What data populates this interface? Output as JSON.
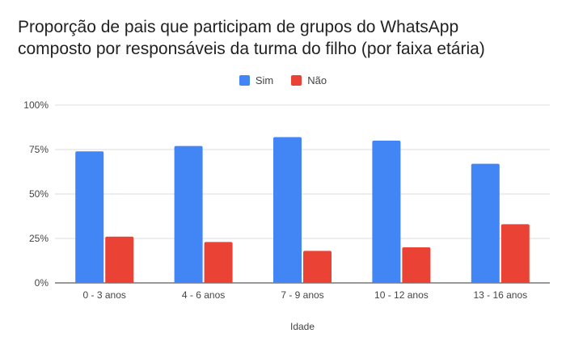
{
  "chart_data": {
    "type": "bar",
    "title_lines": [
      "Proporção de pais que participam de grupos do WhatsApp",
      "composto por responsáveis da turma do filho (por faixa etária)"
    ],
    "xlabel": "Idade",
    "ylabel": "",
    "categories": [
      "0 - 3 anos",
      "4 - 6 anos",
      "7 - 9 anos",
      "10 - 12 anos",
      "13 - 16 anos"
    ],
    "series": [
      {
        "name": "Sim",
        "color": "#4285f4",
        "values": [
          74,
          77,
          82,
          80,
          67
        ]
      },
      {
        "name": "Não",
        "color": "#ea4335",
        "values": [
          26,
          23,
          18,
          20,
          33
        ]
      }
    ],
    "ylim": [
      0,
      100
    ],
    "yticks": [
      "0%",
      "25%",
      "50%",
      "75%",
      "100%"
    ],
    "ytick_values": [
      0,
      25,
      50,
      75,
      100
    ],
    "legend_position": "top-center",
    "grid": true
  }
}
